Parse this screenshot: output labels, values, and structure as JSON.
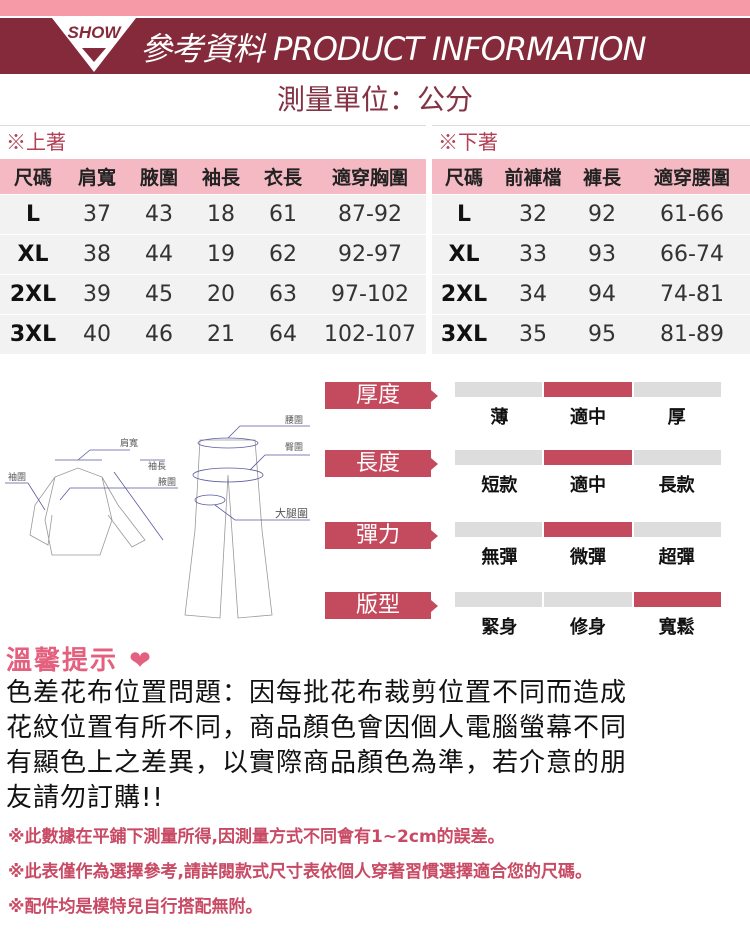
{
  "header": {
    "badge": "SHOW",
    "title": "參考資料 PRODUCT INFORMATION",
    "unit": "測量單位：公分"
  },
  "top_table": {
    "caption": "※上著",
    "columns": [
      "尺碼",
      "肩寬",
      "腋圍",
      "袖長",
      "衣長",
      "適穿胸圍"
    ],
    "rows": [
      [
        "L",
        "37",
        "43",
        "18",
        "61",
        "87-92"
      ],
      [
        "XL",
        "38",
        "44",
        "19",
        "62",
        "92-97"
      ],
      [
        "2XL",
        "39",
        "45",
        "20",
        "63",
        "97-102"
      ],
      [
        "3XL",
        "40",
        "46",
        "21",
        "64",
        "102-107"
      ]
    ]
  },
  "bottom_table": {
    "caption": "※下著",
    "columns": [
      "尺碼",
      "前褲檔",
      "褲長",
      "適穿腰圍"
    ],
    "rows": [
      [
        "L",
        "32",
        "92",
        "61-66"
      ],
      [
        "XL",
        "33",
        "93",
        "66-74"
      ],
      [
        "2XL",
        "34",
        "94",
        "74-81"
      ],
      [
        "3XL",
        "35",
        "95",
        "81-89"
      ]
    ]
  },
  "diagram": {
    "labels": {
      "shoulder": "肩寬",
      "cuff": "袖圍",
      "sleeve": "袖長",
      "armpit": "腋圍",
      "waist": "腰圍",
      "hip": "臀圍",
      "thigh": "大腿圍"
    }
  },
  "attributes": [
    {
      "label": "厚度",
      "options": [
        "薄",
        "適中",
        "厚"
      ],
      "selected": 1
    },
    {
      "label": "長度",
      "options": [
        "短款",
        "適中",
        "長款"
      ],
      "selected": 1
    },
    {
      "label": "彈力",
      "options": [
        "無彈",
        "微彈",
        "超彈"
      ],
      "selected": 1
    },
    {
      "label": "版型",
      "options": [
        "緊身",
        "修身",
        "寬鬆"
      ],
      "selected": 2
    }
  ],
  "tips": {
    "heading": "溫馨提示",
    "icon": "heart-icon",
    "lines": [
      "色差花布位置問題：因每批花布裁剪位置不同而造成",
      "花紋位置有所不同，商品顏色會因個人電腦螢幕不同",
      "有顯色上之差異，以實際商品顏色為準，若介意的朋",
      "友請勿訂購!!"
    ]
  },
  "notes": [
    "※此數據在平鋪下測量所得,因測量方式不同會有1~2cm的誤差。",
    "※此表僅作為選擇參考,請詳閱款式尺寸表依個人穿著習慣選擇適合您的尺碼。",
    "※配件均是模特兒自行搭配無附。"
  ],
  "colors": {
    "band": "#842a3a",
    "accent": "#c44a5e",
    "pink": "#f5b9c3",
    "tip": "#e3607e"
  }
}
